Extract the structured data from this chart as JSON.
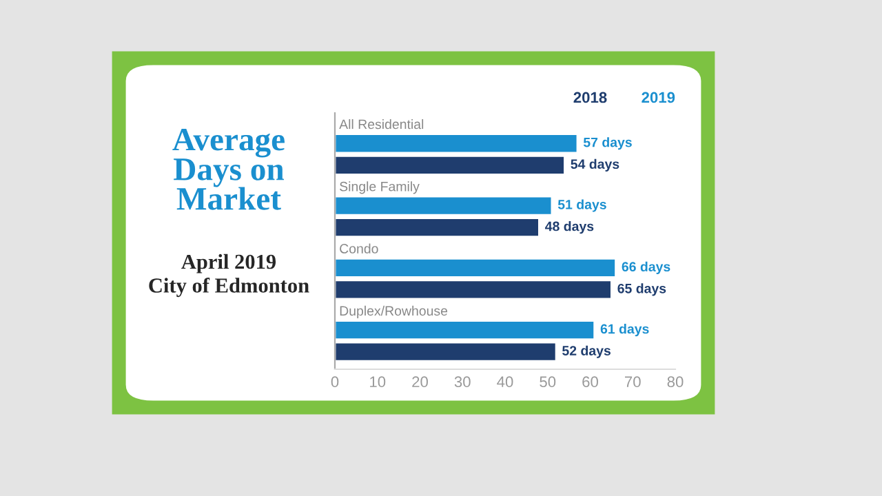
{
  "chart_data": {
    "type": "bar",
    "orientation": "horizontal",
    "title": "Average Days on Market",
    "subtitle": "April 2019\nCity of Edmonton",
    "categories": [
      "All Residential",
      "Single Family",
      "Condo",
      "Duplex/Rowhouse"
    ],
    "series": [
      {
        "name": "2019",
        "color": "#1a8fcf",
        "values": [
          57,
          51,
          66,
          61
        ],
        "value_labels": [
          "57 days",
          "51 days",
          "66 days",
          "61 days"
        ]
      },
      {
        "name": "2018",
        "color": "#1f3d6e",
        "values": [
          54,
          48,
          65,
          52
        ],
        "value_labels": [
          "54 days",
          "48 days",
          "65 days",
          "52 days"
        ]
      }
    ],
    "xlim": [
      0,
      80
    ],
    "xticks": [
      0,
      10,
      20,
      30,
      40,
      50,
      60,
      70,
      80
    ],
    "grid": false,
    "legend": "top right"
  }
}
